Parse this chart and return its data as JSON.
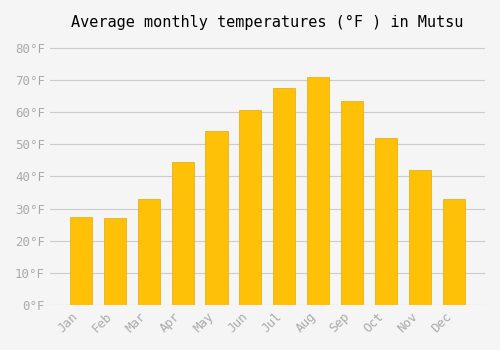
{
  "title": "Average monthly temperatures (°F ) in Mutsu",
  "months": [
    "Jan",
    "Feb",
    "Mar",
    "Apr",
    "May",
    "Jun",
    "Jul",
    "Aug",
    "Sep",
    "Oct",
    "Nov",
    "Dec"
  ],
  "values": [
    27.5,
    27.0,
    33.0,
    44.5,
    54.0,
    60.5,
    67.5,
    71.0,
    63.5,
    52.0,
    42.0,
    33.0
  ],
  "bar_color_face": "#FFC107",
  "bar_color_edge": "#E8A800",
  "background_color": "#f5f5f5",
  "grid_color": "#cccccc",
  "ylim": [
    0,
    83
  ],
  "yticks": [
    0,
    10,
    20,
    30,
    40,
    50,
    60,
    70,
    80
  ],
  "ytick_labels": [
    "0°F",
    "10°F",
    "20°F",
    "30°F",
    "40°F",
    "50°F",
    "60°F",
    "70°F",
    "80°F"
  ],
  "tick_label_color": "#aaaaaa",
  "title_fontsize": 11,
  "tick_fontsize": 9
}
